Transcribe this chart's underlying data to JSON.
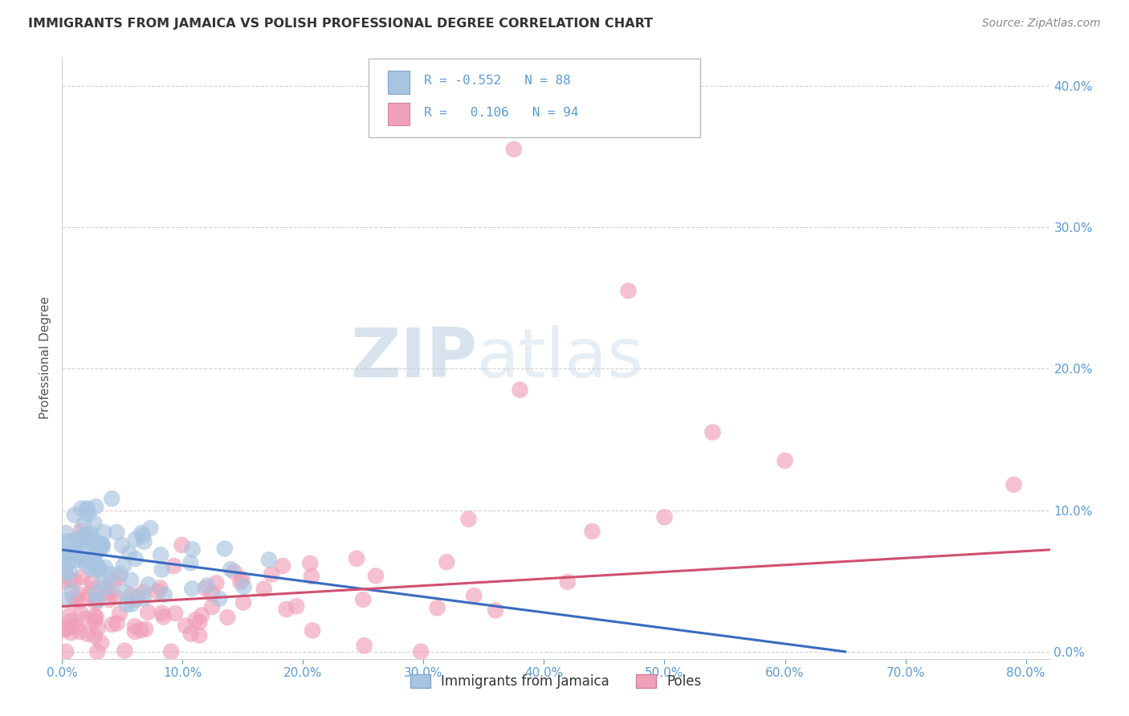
{
  "title": "IMMIGRANTS FROM JAMAICA VS POLISH PROFESSIONAL DEGREE CORRELATION CHART",
  "source": "Source: ZipAtlas.com",
  "ylabel": "Professional Degree",
  "xlim": [
    0.0,
    0.82
  ],
  "ylim": [
    -0.005,
    0.42
  ],
  "xtick_vals": [
    0.0,
    0.1,
    0.2,
    0.3,
    0.4,
    0.5,
    0.6,
    0.7,
    0.8
  ],
  "xtick_labels": [
    "0.0%",
    "10.0%",
    "20.0%",
    "30.0%",
    "40.0%",
    "50.0%",
    "60.0%",
    "70.0%",
    "80.0%"
  ],
  "ytick_vals": [
    0.0,
    0.1,
    0.2,
    0.3,
    0.4
  ],
  "ytick_labels": [
    "0.0%",
    "10.0%",
    "20.0%",
    "30.0%",
    "40.0%"
  ],
  "blue_color": "#a8c4e0",
  "blue_line_color": "#3a6bbf",
  "pink_color": "#f0a0b8",
  "pink_line_color": "#d05070",
  "blue_R": "-0.552",
  "blue_N": "88",
  "pink_R": "0.106",
  "pink_N": "94",
  "blue_line_x0": 0.0,
  "blue_line_y0": 0.072,
  "blue_line_x1": 0.65,
  "blue_line_y1": 0.0,
  "pink_line_x0": 0.0,
  "pink_line_y0": 0.032,
  "pink_line_x1": 0.82,
  "pink_line_y1": 0.072,
  "legend_label_blue": "Immigrants from Jamaica",
  "legend_label_pink": "Poles",
  "watermark_zip_color": "#c8d8ec",
  "watermark_atlas_color": "#b0c8e0",
  "grid_color": "#d0d0d0",
  "axis_tick_color": "#5b9bd5",
  "background_color": "#ffffff"
}
